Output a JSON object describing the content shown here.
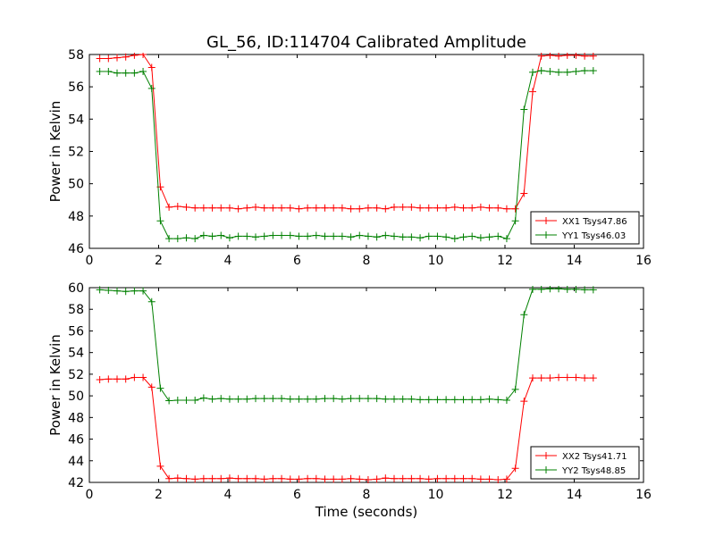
{
  "chart_data": [
    {
      "type": "line",
      "title": "GL_56, ID:114704 Calibrated Amplitude",
      "xlabel": "",
      "ylabel": "Power in Kelvin",
      "xlim": [
        0,
        16
      ],
      "ylim": [
        46,
        58
      ],
      "xticks": [
        "0",
        "2",
        "4",
        "6",
        "8",
        "10",
        "12",
        "14",
        "16"
      ],
      "yticks": [
        "46",
        "48",
        "50",
        "52",
        "54",
        "56",
        "58"
      ],
      "grid": false,
      "legend_position": "lower-right",
      "x": [
        0.3,
        0.55,
        0.8,
        1.05,
        1.3,
        1.55,
        1.8,
        2.05,
        2.3,
        2.55,
        2.8,
        3.05,
        3.3,
        3.55,
        3.8,
        4.05,
        4.3,
        4.55,
        4.8,
        5.05,
        5.3,
        5.55,
        5.8,
        6.05,
        6.3,
        6.55,
        6.8,
        7.05,
        7.3,
        7.55,
        7.8,
        8.05,
        8.3,
        8.55,
        8.8,
        9.05,
        9.3,
        9.55,
        9.8,
        10.05,
        10.3,
        10.55,
        10.8,
        11.05,
        11.3,
        11.55,
        11.8,
        12.05,
        12.3,
        12.55,
        12.8,
        13.05,
        13.3,
        13.55,
        13.8,
        14.05,
        14.3,
        14.55
      ],
      "series": [
        {
          "name": "XX1 Tsys47.86",
          "color": "#ff0000",
          "values": [
            57.75,
            57.75,
            57.8,
            57.85,
            57.95,
            58.0,
            57.2,
            49.8,
            48.55,
            48.6,
            48.55,
            48.5,
            48.5,
            48.5,
            48.5,
            48.5,
            48.45,
            48.5,
            48.55,
            48.5,
            48.5,
            48.5,
            48.5,
            48.45,
            48.5,
            48.5,
            48.5,
            48.5,
            48.5,
            48.45,
            48.45,
            48.5,
            48.5,
            48.45,
            48.55,
            48.55,
            48.55,
            48.5,
            48.5,
            48.5,
            48.5,
            48.55,
            48.5,
            48.5,
            48.55,
            48.5,
            48.5,
            48.45,
            48.45,
            49.4,
            55.7,
            57.9,
            57.95,
            57.9,
            57.95,
            57.95,
            57.9,
            57.9
          ]
        },
        {
          "name": "YY1 Tsys46.03",
          "color": "#008000",
          "values": [
            56.95,
            56.95,
            56.85,
            56.85,
            56.85,
            56.95,
            55.9,
            47.7,
            46.6,
            46.6,
            46.65,
            46.6,
            46.8,
            46.75,
            46.8,
            46.65,
            46.75,
            46.75,
            46.7,
            46.75,
            46.8,
            46.8,
            46.8,
            46.75,
            46.75,
            46.8,
            46.75,
            46.75,
            46.75,
            46.7,
            46.8,
            46.75,
            46.7,
            46.8,
            46.75,
            46.7,
            46.7,
            46.65,
            46.75,
            46.75,
            46.7,
            46.6,
            46.7,
            46.75,
            46.65,
            46.7,
            46.75,
            46.6,
            47.7,
            54.6,
            56.9,
            57.0,
            56.95,
            56.9,
            56.9,
            56.95,
            57.0,
            57.0
          ]
        }
      ]
    },
    {
      "type": "line",
      "title": "",
      "xlabel": "Time (seconds)",
      "ylabel": "Power in Kelvin",
      "xlim": [
        0,
        16
      ],
      "ylim": [
        42,
        60
      ],
      "xticks": [
        "0",
        "2",
        "4",
        "6",
        "8",
        "10",
        "12",
        "14",
        "16"
      ],
      "yticks": [
        "42",
        "44",
        "46",
        "48",
        "50",
        "52",
        "54",
        "56",
        "58",
        "60"
      ],
      "grid": false,
      "legend_position": "lower-right",
      "x": [
        0.3,
        0.55,
        0.8,
        1.05,
        1.3,
        1.55,
        1.8,
        2.05,
        2.3,
        2.55,
        2.8,
        3.05,
        3.3,
        3.55,
        3.8,
        4.05,
        4.3,
        4.55,
        4.8,
        5.05,
        5.3,
        5.55,
        5.8,
        6.05,
        6.3,
        6.55,
        6.8,
        7.05,
        7.3,
        7.55,
        7.8,
        8.05,
        8.3,
        8.55,
        8.8,
        9.05,
        9.3,
        9.55,
        9.8,
        10.05,
        10.3,
        10.55,
        10.8,
        11.05,
        11.3,
        11.55,
        11.8,
        12.05,
        12.3,
        12.55,
        12.8,
        13.05,
        13.3,
        13.55,
        13.8,
        14.05,
        14.3,
        14.55
      ],
      "series": [
        {
          "name": "XX2 Tsys41.71",
          "color": "#ff0000",
          "values": [
            51.5,
            51.55,
            51.55,
            51.55,
            51.7,
            51.7,
            50.8,
            43.5,
            42.35,
            42.4,
            42.35,
            42.3,
            42.35,
            42.35,
            42.35,
            42.4,
            42.35,
            42.35,
            42.35,
            42.3,
            42.35,
            42.35,
            42.3,
            42.3,
            42.35,
            42.35,
            42.3,
            42.3,
            42.3,
            42.35,
            42.3,
            42.25,
            42.3,
            42.4,
            42.35,
            42.35,
            42.35,
            42.35,
            42.3,
            42.35,
            42.35,
            42.35,
            42.35,
            42.35,
            42.3,
            42.3,
            42.25,
            42.3,
            43.3,
            49.5,
            51.65,
            51.65,
            51.65,
            51.7,
            51.7,
            51.7,
            51.65,
            51.65
          ]
        },
        {
          "name": "YY2 Tsys48.85",
          "color": "#008000",
          "values": [
            59.8,
            59.75,
            59.7,
            59.65,
            59.7,
            59.7,
            58.7,
            50.7,
            49.55,
            49.6,
            49.6,
            49.6,
            49.8,
            49.7,
            49.75,
            49.7,
            49.7,
            49.7,
            49.75,
            49.75,
            49.75,
            49.75,
            49.7,
            49.7,
            49.7,
            49.7,
            49.75,
            49.75,
            49.7,
            49.75,
            49.75,
            49.75,
            49.75,
            49.7,
            49.7,
            49.7,
            49.7,
            49.65,
            49.65,
            49.65,
            49.65,
            49.65,
            49.65,
            49.65,
            49.65,
            49.7,
            49.65,
            49.6,
            50.6,
            57.5,
            59.85,
            59.85,
            59.9,
            59.9,
            59.85,
            59.85,
            59.8,
            59.8
          ]
        }
      ]
    }
  ]
}
